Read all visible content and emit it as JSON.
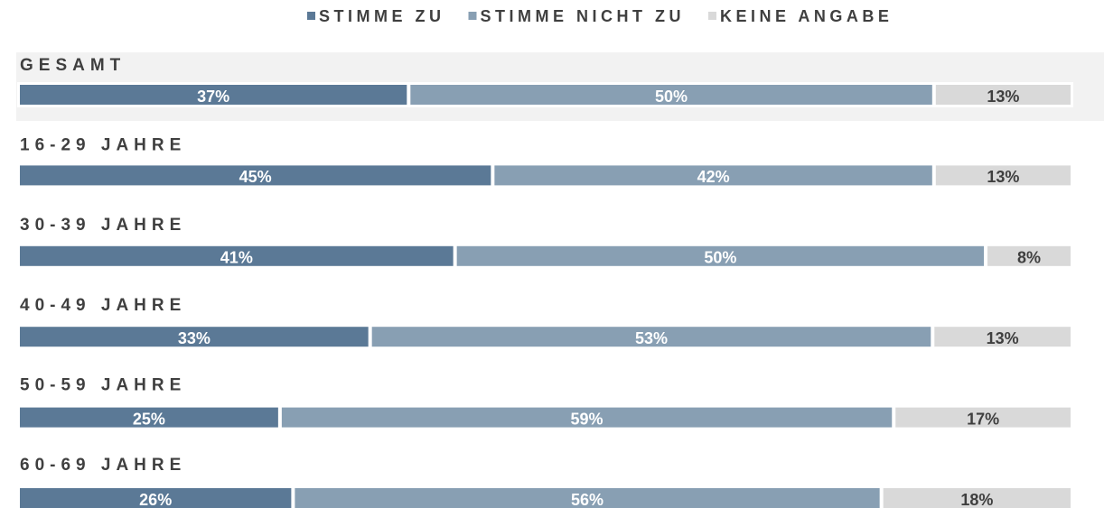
{
  "chart_data": {
    "type": "bar",
    "orientation": "horizontal",
    "stacked": true,
    "categories": [
      "GESAMT",
      "16-29 JAHRE",
      "30-39 JAHRE",
      "40-49 JAHRE",
      "50-59 JAHRE",
      "60-69 JAHRE"
    ],
    "series": [
      {
        "name": "STIMME ZU",
        "color": "#5b7996",
        "values": [
          37,
          45,
          41,
          33,
          25,
          26
        ],
        "value_labels": [
          "37%",
          "45%",
          "41%",
          "33%",
          "25%",
          "26%"
        ]
      },
      {
        "name": "STIMME NICHT ZU",
        "color": "#889fb3",
        "values": [
          50,
          42,
          50,
          53,
          59,
          56
        ],
        "value_labels": [
          "50%",
          "42%",
          "50%",
          "53%",
          "59%",
          "56%"
        ]
      },
      {
        "name": "KEINE ANGABE",
        "color": "#d9d9d9",
        "values": [
          13,
          13,
          8,
          13,
          17,
          18
        ],
        "value_labels": [
          "13%",
          "13%",
          "8%",
          "13%",
          "17%",
          "18%"
        ]
      }
    ]
  }
}
